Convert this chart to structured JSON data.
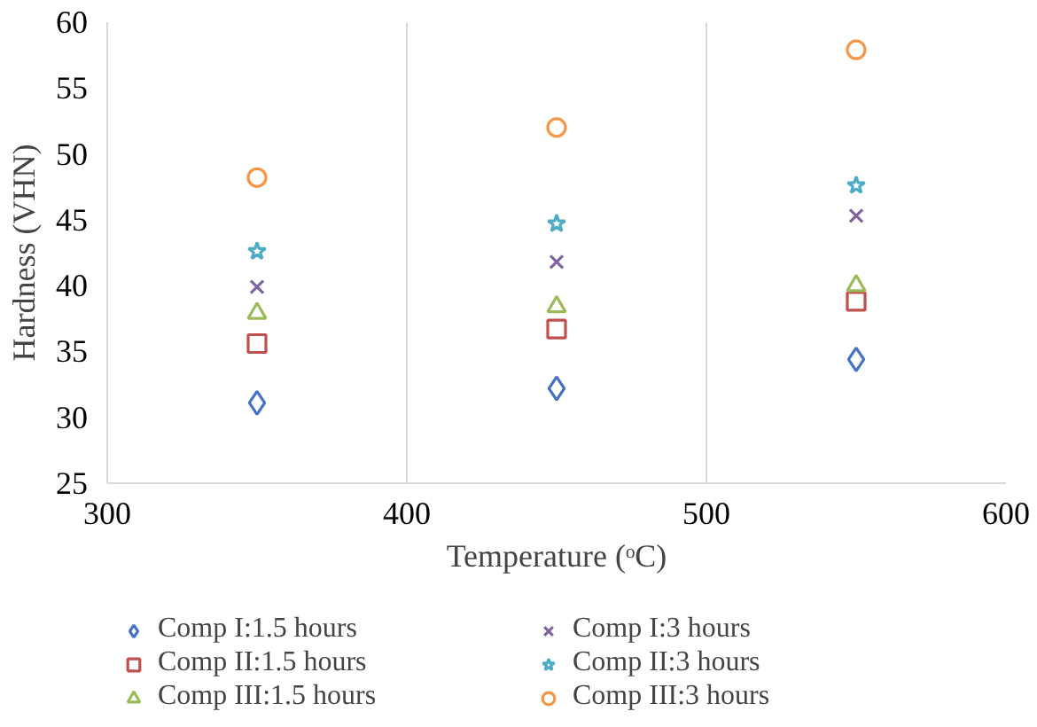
{
  "chart_data": {
    "type": "scatter",
    "xlabel": "Temperature (ᵒC)",
    "ylabel": "Hardness (VHN)",
    "x": [
      350,
      450,
      550
    ],
    "xlim": [
      300,
      600
    ],
    "xticks": [
      300,
      400,
      500,
      600
    ],
    "ylim": [
      25,
      60
    ],
    "yticks": [
      25,
      30,
      35,
      40,
      45,
      50,
      55,
      60
    ],
    "grid": "x",
    "legend": "bottom",
    "series": [
      {
        "name": "Comp I:1.5 hours",
        "color": "#4472c4",
        "marker": "diamond",
        "values": [
          31.1,
          32.2,
          34.4
        ]
      },
      {
        "name": "Comp II:1.5 hours",
        "color": "#c0504d",
        "marker": "square",
        "values": [
          35.6,
          36.7,
          38.8
        ]
      },
      {
        "name": "Comp III:1.5 hours",
        "color": "#9bbb59",
        "marker": "triangle",
        "values": [
          37.9,
          38.4,
          40.0
        ]
      },
      {
        "name": "Comp I:3 hours",
        "color": "#8064a2",
        "marker": "cross",
        "values": [
          39.9,
          41.8,
          45.3
        ]
      },
      {
        "name": "Comp II:3 hours",
        "color": "#4bacc6",
        "marker": "star",
        "values": [
          42.6,
          44.7,
          47.6
        ]
      },
      {
        "name": "Comp III:3 hours",
        "color": "#f79646",
        "marker": "circle",
        "values": [
          48.2,
          52.0,
          57.9
        ]
      }
    ]
  }
}
